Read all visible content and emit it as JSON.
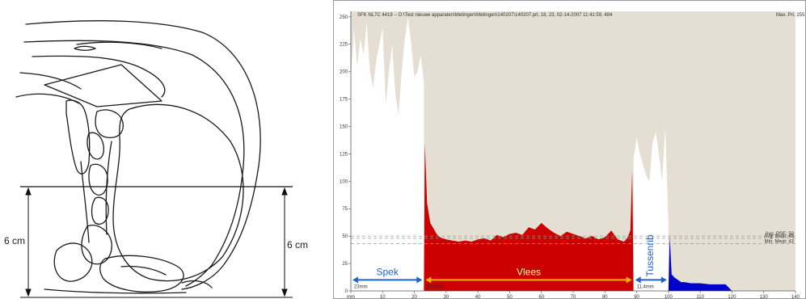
{
  "diagram": {
    "left_measure": "6 cm",
    "right_measure": "6 cm"
  },
  "chart_header": {
    "info": "SFK NL7C 4419 -- D:\\Test nieuwe apparaten\\Metingen\\Metingen\\140207\\140207.prl, 18,   23, 02-14-2007 11:41:59, 484",
    "max_label": "Max. Pri. 255"
  },
  "chart_data": {
    "type": "area",
    "title": "",
    "xlabel": "mm",
    "ylabel": "",
    "xlim": [
      0,
      140
    ],
    "ylim": [
      0,
      255
    ],
    "xticks": [
      0,
      10,
      20,
      30,
      40,
      50,
      60,
      70,
      80,
      90,
      100,
      110,
      120,
      130,
      140
    ],
    "yticks": [
      0,
      25,
      50,
      75,
      100,
      125,
      150,
      175,
      200,
      225,
      250
    ],
    "xticklabels": [
      "mm",
      "10",
      "20",
      "30",
      "40",
      "50",
      "60",
      "70",
      "80",
      "90",
      "100",
      "110",
      "120",
      "130",
      "140"
    ],
    "colors": {
      "background": "#e4dfd2",
      "spek": "#ffffff",
      "vlees": "#cc0000",
      "tussenrib": "#ffffff",
      "tail": "#0000cc",
      "arrow_spek": "#1f62c8",
      "arrow_vlees": "#f0b400",
      "arrow_tussenrib": "#1f62c8"
    },
    "reference_lines": [
      {
        "label": "Avg. PSE: 50",
        "y": 50
      },
      {
        "label": "Avg. Meat: 48",
        "y": 48
      },
      {
        "label": "Min. Meat: 43",
        "y": 43
      }
    ],
    "series": [
      {
        "name": "Spek",
        "color": "#ffffff",
        "x": [
          0,
          1,
          2,
          3,
          4,
          5,
          6,
          7,
          8,
          9,
          10,
          11,
          12,
          13,
          14,
          15,
          16,
          17,
          18,
          19,
          20,
          21,
          22,
          23
        ],
        "y": [
          195,
          238,
          205,
          230,
          215,
          245,
          200,
          185,
          210,
          225,
          240,
          170,
          200,
          225,
          180,
          160,
          200,
          230,
          250,
          225,
          195,
          200,
          215,
          190
        ]
      },
      {
        "name": "Vlees",
        "color": "#cc0000",
        "x": [
          23,
          23.3,
          24,
          25,
          26,
          27,
          28,
          30,
          32,
          34,
          36,
          38,
          40,
          42,
          44,
          46,
          48,
          50,
          52,
          54,
          56,
          58,
          60,
          62,
          64,
          66,
          68,
          70,
          72,
          74,
          76,
          78,
          80,
          82,
          84,
          86,
          87,
          88,
          88.6,
          89
        ],
        "y": [
          0,
          135,
          80,
          62,
          57,
          52,
          49,
          47,
          46,
          45,
          46,
          45,
          47,
          48,
          46,
          51,
          49,
          52,
          53,
          51,
          58,
          56,
          62,
          57,
          53,
          50,
          54,
          52,
          50,
          48,
          50,
          47,
          49,
          55,
          47,
          45,
          48,
          55,
          110,
          0
        ]
      },
      {
        "name": "Tussenrib",
        "color": "#ffffff",
        "x": [
          89,
          90,
          91,
          92,
          93,
          94,
          95,
          96,
          97,
          98,
          99,
          99.6,
          100
        ],
        "y": [
          120,
          140,
          125,
          115,
          105,
          100,
          135,
          145,
          125,
          100,
          150,
          95,
          60
        ]
      },
      {
        "name": "",
        "color": "#0000cc",
        "x": [
          100,
          100.4,
          101,
          102,
          103,
          104,
          105,
          107,
          110,
          113,
          116,
          118,
          120
        ],
        "y": [
          0,
          50,
          15,
          12,
          10,
          8,
          8,
          7,
          7,
          6,
          6,
          6,
          0
        ]
      }
    ],
    "annotations": [
      {
        "text": "Spek",
        "x_from": 0,
        "x_to": 23,
        "y": 10
      },
      {
        "text": "Vlees",
        "x_from": 23,
        "x_to": 89,
        "y": 10
      },
      {
        "text": "Tussenrib",
        "x_from": 89,
        "x_to": 100,
        "y": 10
      },
      {
        "text": "23mm",
        "x": 1,
        "y": 2
      },
      {
        "text": "65.8mm",
        "x": 24,
        "y": 2
      },
      {
        "text": "11.4mm",
        "x": 90,
        "y": 2
      }
    ]
  }
}
